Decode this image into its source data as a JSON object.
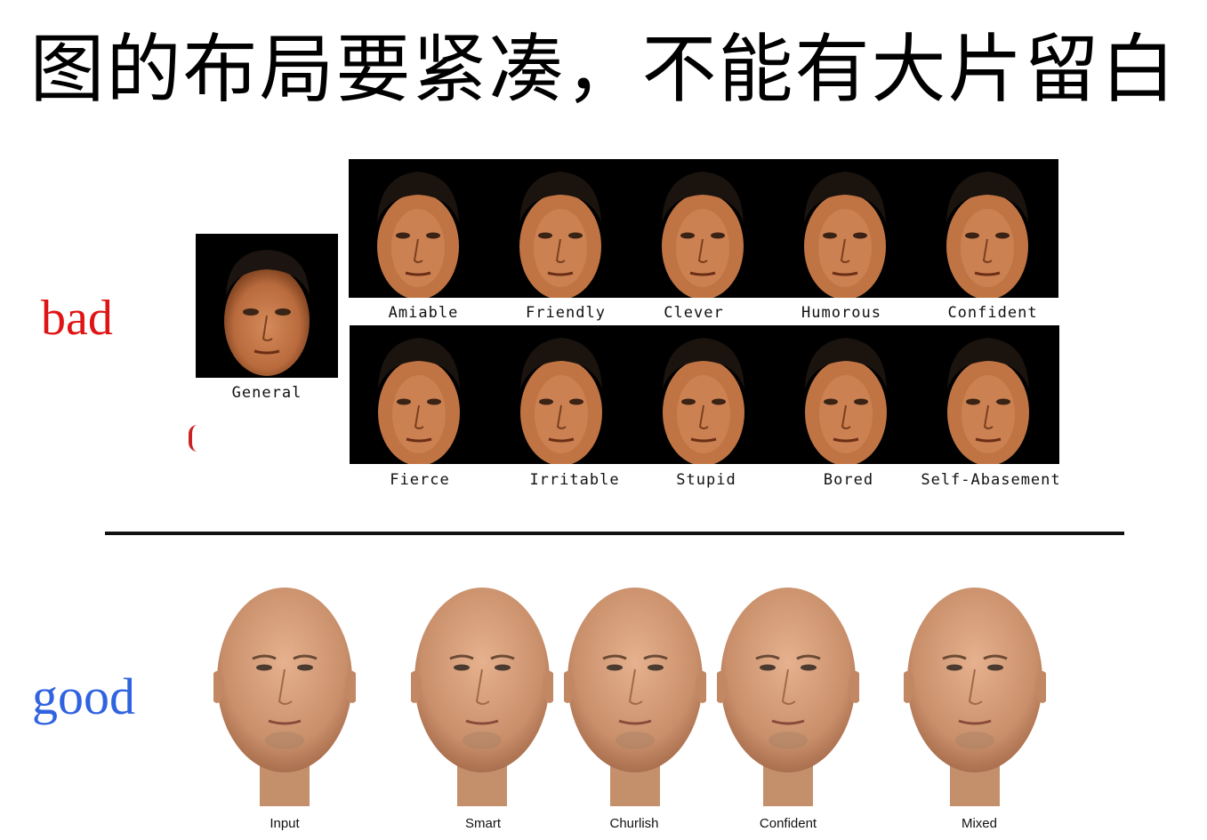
{
  "title": "图的布局要紧凑，不能有大片留白",
  "bad": {
    "label": "bad",
    "color": "#e01414"
  },
  "good": {
    "label": "good",
    "color": "#2f63e0"
  },
  "general_caption": "General",
  "bad_row1": [
    "Amiable",
    "Friendly",
    "Clever",
    "Humorous",
    "Confident"
  ],
  "bad_row2": [
    "Fierce",
    "Irritable",
    "Stupid",
    "Bored",
    "Self-Abasement"
  ],
  "good_captions": [
    "Input",
    "Smart",
    "Churlish",
    "Confident",
    "Mixed"
  ]
}
